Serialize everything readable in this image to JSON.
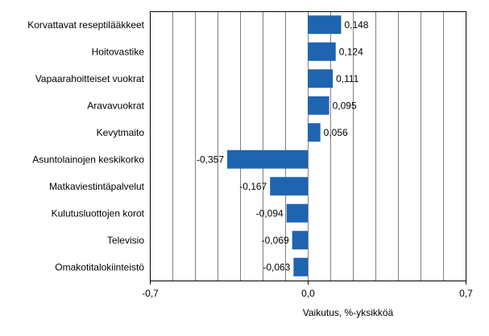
{
  "chart_data": {
    "type": "bar",
    "orientation": "horizontal",
    "categories": [
      "Korvattavat reseptilääkkeet",
      "Hoitovastike",
      "Vapaarahoitteiset vuokrat",
      "Aravavuokrat",
      "Kevytmaito",
      "Asuntolainojen keskikorko",
      "Matkaviestintäpalvelut",
      "Kulutusluottojen korot",
      "Televisio",
      "Omakotitalokiinteistö"
    ],
    "values": [
      0.148,
      0.124,
      0.111,
      0.095,
      0.056,
      -0.357,
      -0.167,
      -0.094,
      -0.069,
      -0.063
    ],
    "value_labels": [
      "0,148",
      "0,124",
      "0,111",
      "0,095",
      "0,056",
      "-0,357",
      "-0,167",
      "-0,094",
      "-0,069",
      "-0,063"
    ],
    "xlim": [
      -0.7,
      0.7
    ],
    "xticks": [
      "-0,7",
      "0,0",
      "0,7"
    ],
    "xlabel": "Vaikutus, %-yksikköä",
    "grid": true,
    "bar_color": "#1f64b0",
    "grid_color": "#808080"
  }
}
